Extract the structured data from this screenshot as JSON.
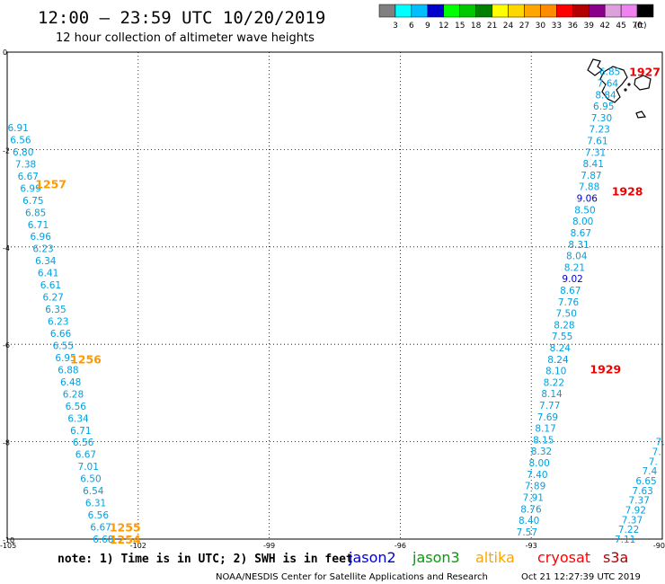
{
  "header": {
    "title": "12:00 – 23:59 UTC 10/20/2019",
    "subtitle": "12 hour collection of altimeter wave heights"
  },
  "color_scale": {
    "labels": [
      "3",
      "6",
      "9",
      "12",
      "15",
      "18",
      "21",
      "24",
      "27",
      "30",
      "33",
      "36",
      "39",
      "42",
      "45",
      "70"
    ],
    "unit": "(ft)",
    "colors": [
      "#808080",
      "#00ffff",
      "#00bfff",
      "#0000cd",
      "#00ff00",
      "#00c800",
      "#008000",
      "#ffff00",
      "#ffd700",
      "#ffa500",
      "#ff8c00",
      "#ff0000",
      "#b40000",
      "#8b008b",
      "#dda0dd",
      "#ee82ee",
      "#000000"
    ]
  },
  "axes": {
    "lon_labels": [
      "-105",
      "-102",
      "-99",
      "-96",
      "-93",
      "-90"
    ],
    "lat_labels": [
      "0",
      "-2",
      "-4",
      "-6",
      "-8",
      "-10"
    ]
  },
  "footer": {
    "note": "note:  1) Time is in UTC;  2) SWH is in feet",
    "credit": "NOAA/NESDIS Center for Satellite Applications and Research",
    "timestamp": "Oct 21 12:27:39 UTC 2019"
  },
  "legend_sats": [
    {
      "name": "jason2",
      "color": "#0000cd"
    },
    {
      "name": "jason3",
      "color": "#00a000"
    },
    {
      "name": "altika",
      "color": "#ffa500"
    },
    {
      "name": "cryosat",
      "color": "#ff0000"
    },
    {
      "name": "s3a",
      "color": "#b40000"
    }
  ],
  "time_labels": [
    {
      "text": "1257",
      "lon": -104.0,
      "lat": -2.7,
      "color": "#ff9900"
    },
    {
      "text": "1256",
      "lon": -103.2,
      "lat": -6.3,
      "color": "#ff9900"
    },
    {
      "text": "1255",
      "lon": -102.3,
      "lat": -9.75,
      "color": "#ff9900"
    },
    {
      "text": "1254",
      "lon": -102.3,
      "lat": -10.0,
      "color": "#ff9900"
    },
    {
      "text": "1927",
      "lon": -90.4,
      "lat": -0.4,
      "color": "#ee0000"
    },
    {
      "text": "1928",
      "lon": -90.8,
      "lat": -2.85,
      "color": "#ee0000"
    },
    {
      "text": "1929",
      "lon": -91.3,
      "lat": -6.5,
      "color": "#ee0000"
    }
  ],
  "tracks": [
    {
      "name": "altika-track",
      "start_lon": -104.75,
      "start_lat": -1.55,
      "end_lon": -102.8,
      "end_lat": -10.0,
      "values": [
        "6.91",
        "6.56",
        "6.80",
        "7.38",
        "6.67",
        "6.99",
        "6.75",
        "6.85",
        "6.71",
        "6.96",
        "6.23",
        "6.34",
        "6.41",
        "6.61",
        "6.27",
        "6.35",
        "6.23",
        "6.66",
        "6.55",
        "6.95",
        "6.88",
        "6.48",
        "6.28",
        "6.56",
        "6.34",
        "6.71",
        "6.56",
        "6.67",
        "7.01",
        "6.50",
        "6.54",
        "6.31",
        "6.56",
        "6.67",
        "6.68"
      ]
    },
    {
      "name": "cryosat-track",
      "start_lon": -91.2,
      "start_lat": -0.4,
      "end_lon": -93.1,
      "end_lat": -9.85,
      "values": [
        "6.85",
        "7.64",
        "8.84",
        "6.95",
        "7.30",
        "7.23",
        "7.61",
        "7.31",
        "8.41",
        "7.87",
        "7.88",
        "9.06",
        "8.50",
        "8.00",
        "8.67",
        "8.31",
        "8.04",
        "8.21",
        "9.02",
        "8.67",
        "7.76",
        "7.50",
        "8.28",
        "7.55",
        "8.24",
        "8.24",
        "8.10",
        "8.22",
        "8.14",
        "7.77",
        "7.69",
        "8.17",
        "8.15",
        "8.32",
        "8.00",
        "7.40",
        "7.89",
        "7.91",
        "8.76",
        "8.40",
        "7.57"
      ],
      "dark_indices": [
        11,
        18
      ]
    },
    {
      "name": "s3a-track",
      "start_lon": -90.05,
      "start_lat": -8.0,
      "end_lon": -90.85,
      "end_lat": -10.0,
      "values": [
        "7.",
        "7.",
        "7.",
        "7.4",
        "6.65",
        "7.63",
        "7.37",
        "7.92",
        "7.37",
        "7.22",
        "7.11"
      ]
    }
  ]
}
